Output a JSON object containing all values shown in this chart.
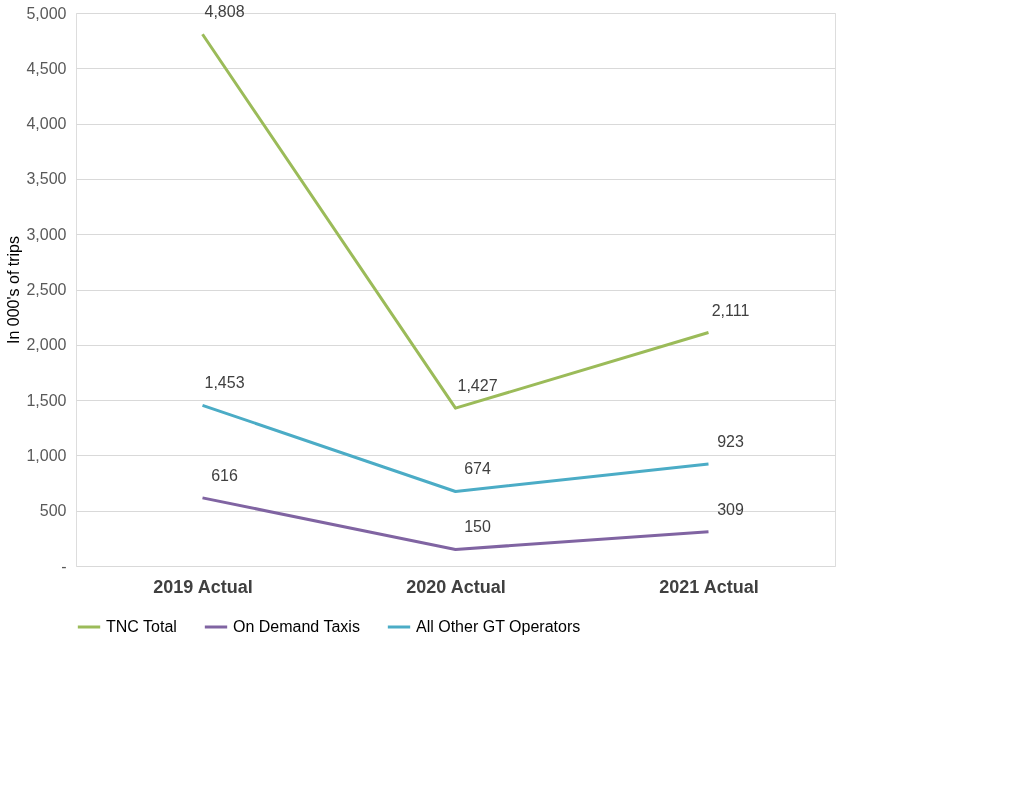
{
  "chart_data": {
    "type": "line",
    "ylabel": "In 000's of trips",
    "categories": [
      "2019 Actual",
      "2020 Actual",
      "2021 Actual"
    ],
    "series": [
      {
        "name": "TNC Total",
        "color": "#9bbb59",
        "values": [
          4808,
          1427,
          2111
        ],
        "value_labels": [
          "4,808",
          "1,427",
          "2,111"
        ]
      },
      {
        "name": "On Demand Taxis",
        "color": "#8064a2",
        "values": [
          616,
          150,
          309
        ],
        "value_labels": [
          "616",
          "150",
          "309"
        ]
      },
      {
        "name": "All Other GT Operators",
        "color": "#4bacc6",
        "values": [
          1453,
          674,
          923
        ],
        "value_labels": [
          "1,453",
          "674",
          "923"
        ]
      }
    ],
    "ylim": [
      0,
      5000
    ],
    "yticks": [
      {
        "value": 0,
        "label": "-"
      },
      {
        "value": 500,
        "label": "500"
      },
      {
        "value": 1000,
        "label": "1,000"
      },
      {
        "value": 1500,
        "label": "1,500"
      },
      {
        "value": 2000,
        "label": "2,000"
      },
      {
        "value": 2500,
        "label": "2,500"
      },
      {
        "value": 3000,
        "label": "3,000"
      },
      {
        "value": 3500,
        "label": "3,500"
      },
      {
        "value": 4000,
        "label": "4,000"
      },
      {
        "value": 4500,
        "label": "4,500"
      },
      {
        "value": 5000,
        "label": "5,000"
      }
    ],
    "grid": "y",
    "legend": "bottom",
    "marker": "none",
    "line_style": "solid"
  }
}
